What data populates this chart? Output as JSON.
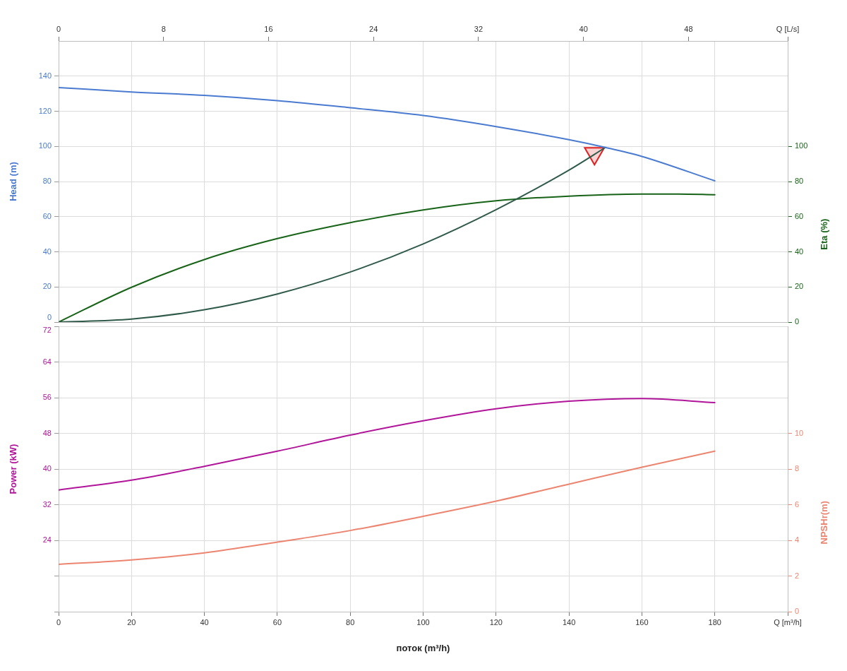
{
  "chart_data": [
    {
      "type": "line",
      "ylabel": "Head (m)",
      "y2label": "Eta (%)",
      "xlim": [
        0,
        200
      ],
      "xticks": [
        0,
        20,
        40,
        60,
        80,
        100,
        120,
        140,
        160,
        180,
        200
      ],
      "x2lim": [
        0,
        55.56
      ],
      "x2ticks": [
        0,
        8,
        16,
        24,
        32,
        40,
        48,
        {
          "value": 55.56,
          "label": "Q [L/s]"
        }
      ],
      "ylim": [
        0,
        160
      ],
      "yticks": [
        0,
        20,
        40,
        60,
        80,
        100,
        120,
        140
      ],
      "y2lim": [
        0,
        160
      ],
      "y2ticks": [
        0,
        20,
        40,
        60,
        80,
        100
      ],
      "grid": true,
      "tick_labels": "y",
      "series": [
        {
          "color": "#4a7bd0",
          "x": [
            0,
            20,
            40,
            60,
            80,
            100,
            120,
            140,
            150,
            160,
            180
          ],
          "values": [
            133.5,
            131,
            129,
            126,
            122,
            117.6,
            111.3,
            103.8,
            99.4,
            94.3,
            80.4
          ]
        },
        {
          "color": "#2f5a4a",
          "x": [
            0,
            20,
            40,
            60,
            80,
            100,
            120,
            140,
            150
          ],
          "values": [
            0,
            1.7,
            7,
            16,
            28.5,
            44.5,
            64,
            86.5,
            99.4
          ]
        },
        {
          "type": "scatter",
          "marker": "triangle",
          "color": "#e02020",
          "x": [
            147
          ],
          "values": [
            96
          ]
        },
        {
          "axis": "y2",
          "color": "#176317",
          "x": [
            0,
            20,
            40,
            60,
            80,
            100,
            120,
            140,
            160,
            170,
            180
          ],
          "values": [
            0,
            19.8,
            35.6,
            47.5,
            56.6,
            63.8,
            69,
            71.7,
            72.9,
            72.9,
            72.5
          ]
        }
      ]
    },
    {
      "type": "line",
      "xlabel": "поток (m³/h)",
      "ylabel": "Power (kW)",
      "y2label": "NPSHr(m)",
      "xlim": [
        0,
        200
      ],
      "xticks": [
        0,
        20,
        40,
        60,
        80,
        100,
        120,
        140,
        160,
        180,
        {
          "value": 200,
          "label": "Q [m³/h]"
        }
      ],
      "ylim": [
        8,
        72
      ],
      "yticks": [
        {
          "value": 8,
          "label": null
        },
        {
          "value": 16,
          "label": null
        },
        24,
        32,
        40,
        48,
        56,
        64,
        72
      ],
      "y2lim": [
        0,
        16
      ],
      "y2ticks": [
        0,
        2,
        4,
        6,
        8,
        10
      ],
      "grid": true,
      "series": [
        {
          "color": "#b0159a",
          "x": [
            0,
            20,
            40,
            60,
            80,
            100,
            120,
            140,
            160,
            180
          ],
          "values": [
            35.3,
            37.5,
            40.6,
            44,
            47.6,
            50.8,
            53.5,
            55.2,
            55.8,
            54.9
          ]
        },
        {
          "axis": "y2",
          "color": "#ec8570",
          "x": [
            0,
            20,
            40,
            60,
            80,
            100,
            120,
            140,
            160,
            180
          ],
          "values": [
            2.65,
            2.9,
            3.3,
            3.9,
            4.55,
            5.35,
            6.2,
            7.15,
            8.1,
            9.0
          ]
        }
      ]
    }
  ]
}
